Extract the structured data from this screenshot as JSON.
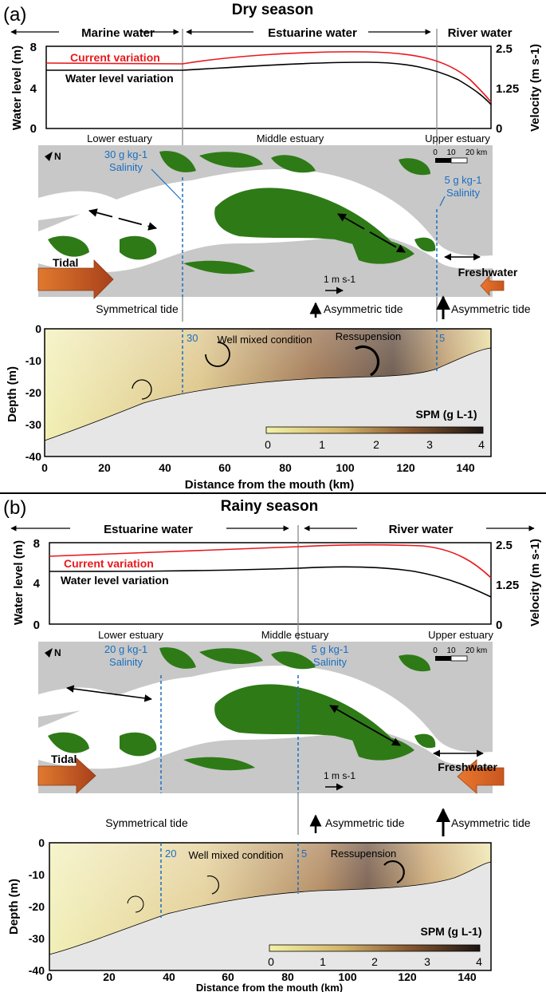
{
  "panels": [
    {
      "letter": "(a)",
      "season": "Dry season",
      "zones": [
        "Marine water",
        "Estuarine water",
        "River water"
      ],
      "curve_labels": {
        "current": "Current variation",
        "water_level": "Water level variation"
      },
      "ylabel_left": "Water level (m)",
      "ylabel_right": "Velocity (m s-1)",
      "yticks_left": [
        "8",
        "4",
        "0"
      ],
      "yticks_right": [
        "2.5",
        "1.25",
        "0"
      ],
      "estuary_labels": [
        "Lower estuary",
        "Middle estuary",
        "Upper estuary"
      ],
      "salinity_marks": [
        {
          "value": "30 g kg-1",
          "label": "Salinity",
          "depth_label": "30"
        },
        {
          "value": "5 g kg-1",
          "label": "Salinity",
          "depth_label": "5"
        }
      ],
      "map_labels": {
        "tidal": "Tidal",
        "freshwater": "Freshwater",
        "scale_velocity": "1 m s-1",
        "scale_km": [
          "0",
          "10",
          "20 km"
        ],
        "north": "N"
      },
      "tide_labels": [
        "Symmetrical tide",
        "Asymmetric tide",
        "Asymmetric tide"
      ],
      "depth_labels": {
        "mixing": "Well mixed condition",
        "resuspension": "Ressupension"
      },
      "depth_axis": {
        "ylabel": "Depth (m)",
        "yticks": [
          "0",
          "-10",
          "-20",
          "-30",
          "-40"
        ],
        "xticks": [
          "0",
          "20",
          "40",
          "60",
          "80",
          "100",
          "120",
          "140"
        ],
        "xlabel": "Distance from the mouth (km)"
      },
      "spm": {
        "title": "SPM (g L-1)",
        "ticks": [
          "0",
          "1",
          "2",
          "3",
          "4"
        ]
      }
    },
    {
      "letter": "(b)",
      "season": "Rainy season",
      "zones": [
        "Estuarine water",
        "River water"
      ],
      "curve_labels": {
        "current": "Current variation",
        "water_level": "Water level variation"
      },
      "ylabel_left": "Water level (m)",
      "ylabel_right": "Velocity (m s-1)",
      "yticks_left": [
        "8",
        "4",
        "0"
      ],
      "yticks_right": [
        "2.5",
        "1.25",
        "0"
      ],
      "estuary_labels": [
        "Lower estuary",
        "Middle estuary",
        "Upper estuary"
      ],
      "salinity_marks": [
        {
          "value": "20 g kg-1",
          "label": "Salinity",
          "depth_label": "20"
        },
        {
          "value": "5 g kg-1",
          "label": "Salinity",
          "depth_label": "5"
        }
      ],
      "map_labels": {
        "tidal": "Tidal",
        "freshwater": "Freshwater",
        "scale_velocity": "1 m s-1",
        "scale_km": [
          "0",
          "10",
          "20 km"
        ],
        "north": "N"
      },
      "tide_labels": [
        "Symmetrical tide",
        "Asymmetric tide",
        "Asymmetric tide"
      ],
      "depth_labels": {
        "mixing": "Well mixed condition",
        "resuspension": "Ressupension"
      },
      "depth_axis": {
        "ylabel": "Depth (m)",
        "yticks": [
          "0",
          "-10",
          "-20",
          "-30",
          "-40"
        ],
        "xticks": [
          "0",
          "20",
          "40",
          "60",
          "80",
          "100",
          "120",
          "140"
        ],
        "xlabel": "Distance from the mouth (km)"
      },
      "spm": {
        "title": "SPM (g L-1)",
        "ticks": [
          "0",
          "1",
          "2",
          "3",
          "4"
        ]
      }
    }
  ],
  "colors": {
    "current_curve": "#e8191d",
    "water_curve": "#000000",
    "salinity": "#1b6fc0",
    "vegetation": "#2e7a17",
    "land": "#c8c8c8",
    "arrow_tidal": "#c84e1c",
    "arrow_fresh": "#e2672a",
    "bed": "#e6e6e6"
  }
}
